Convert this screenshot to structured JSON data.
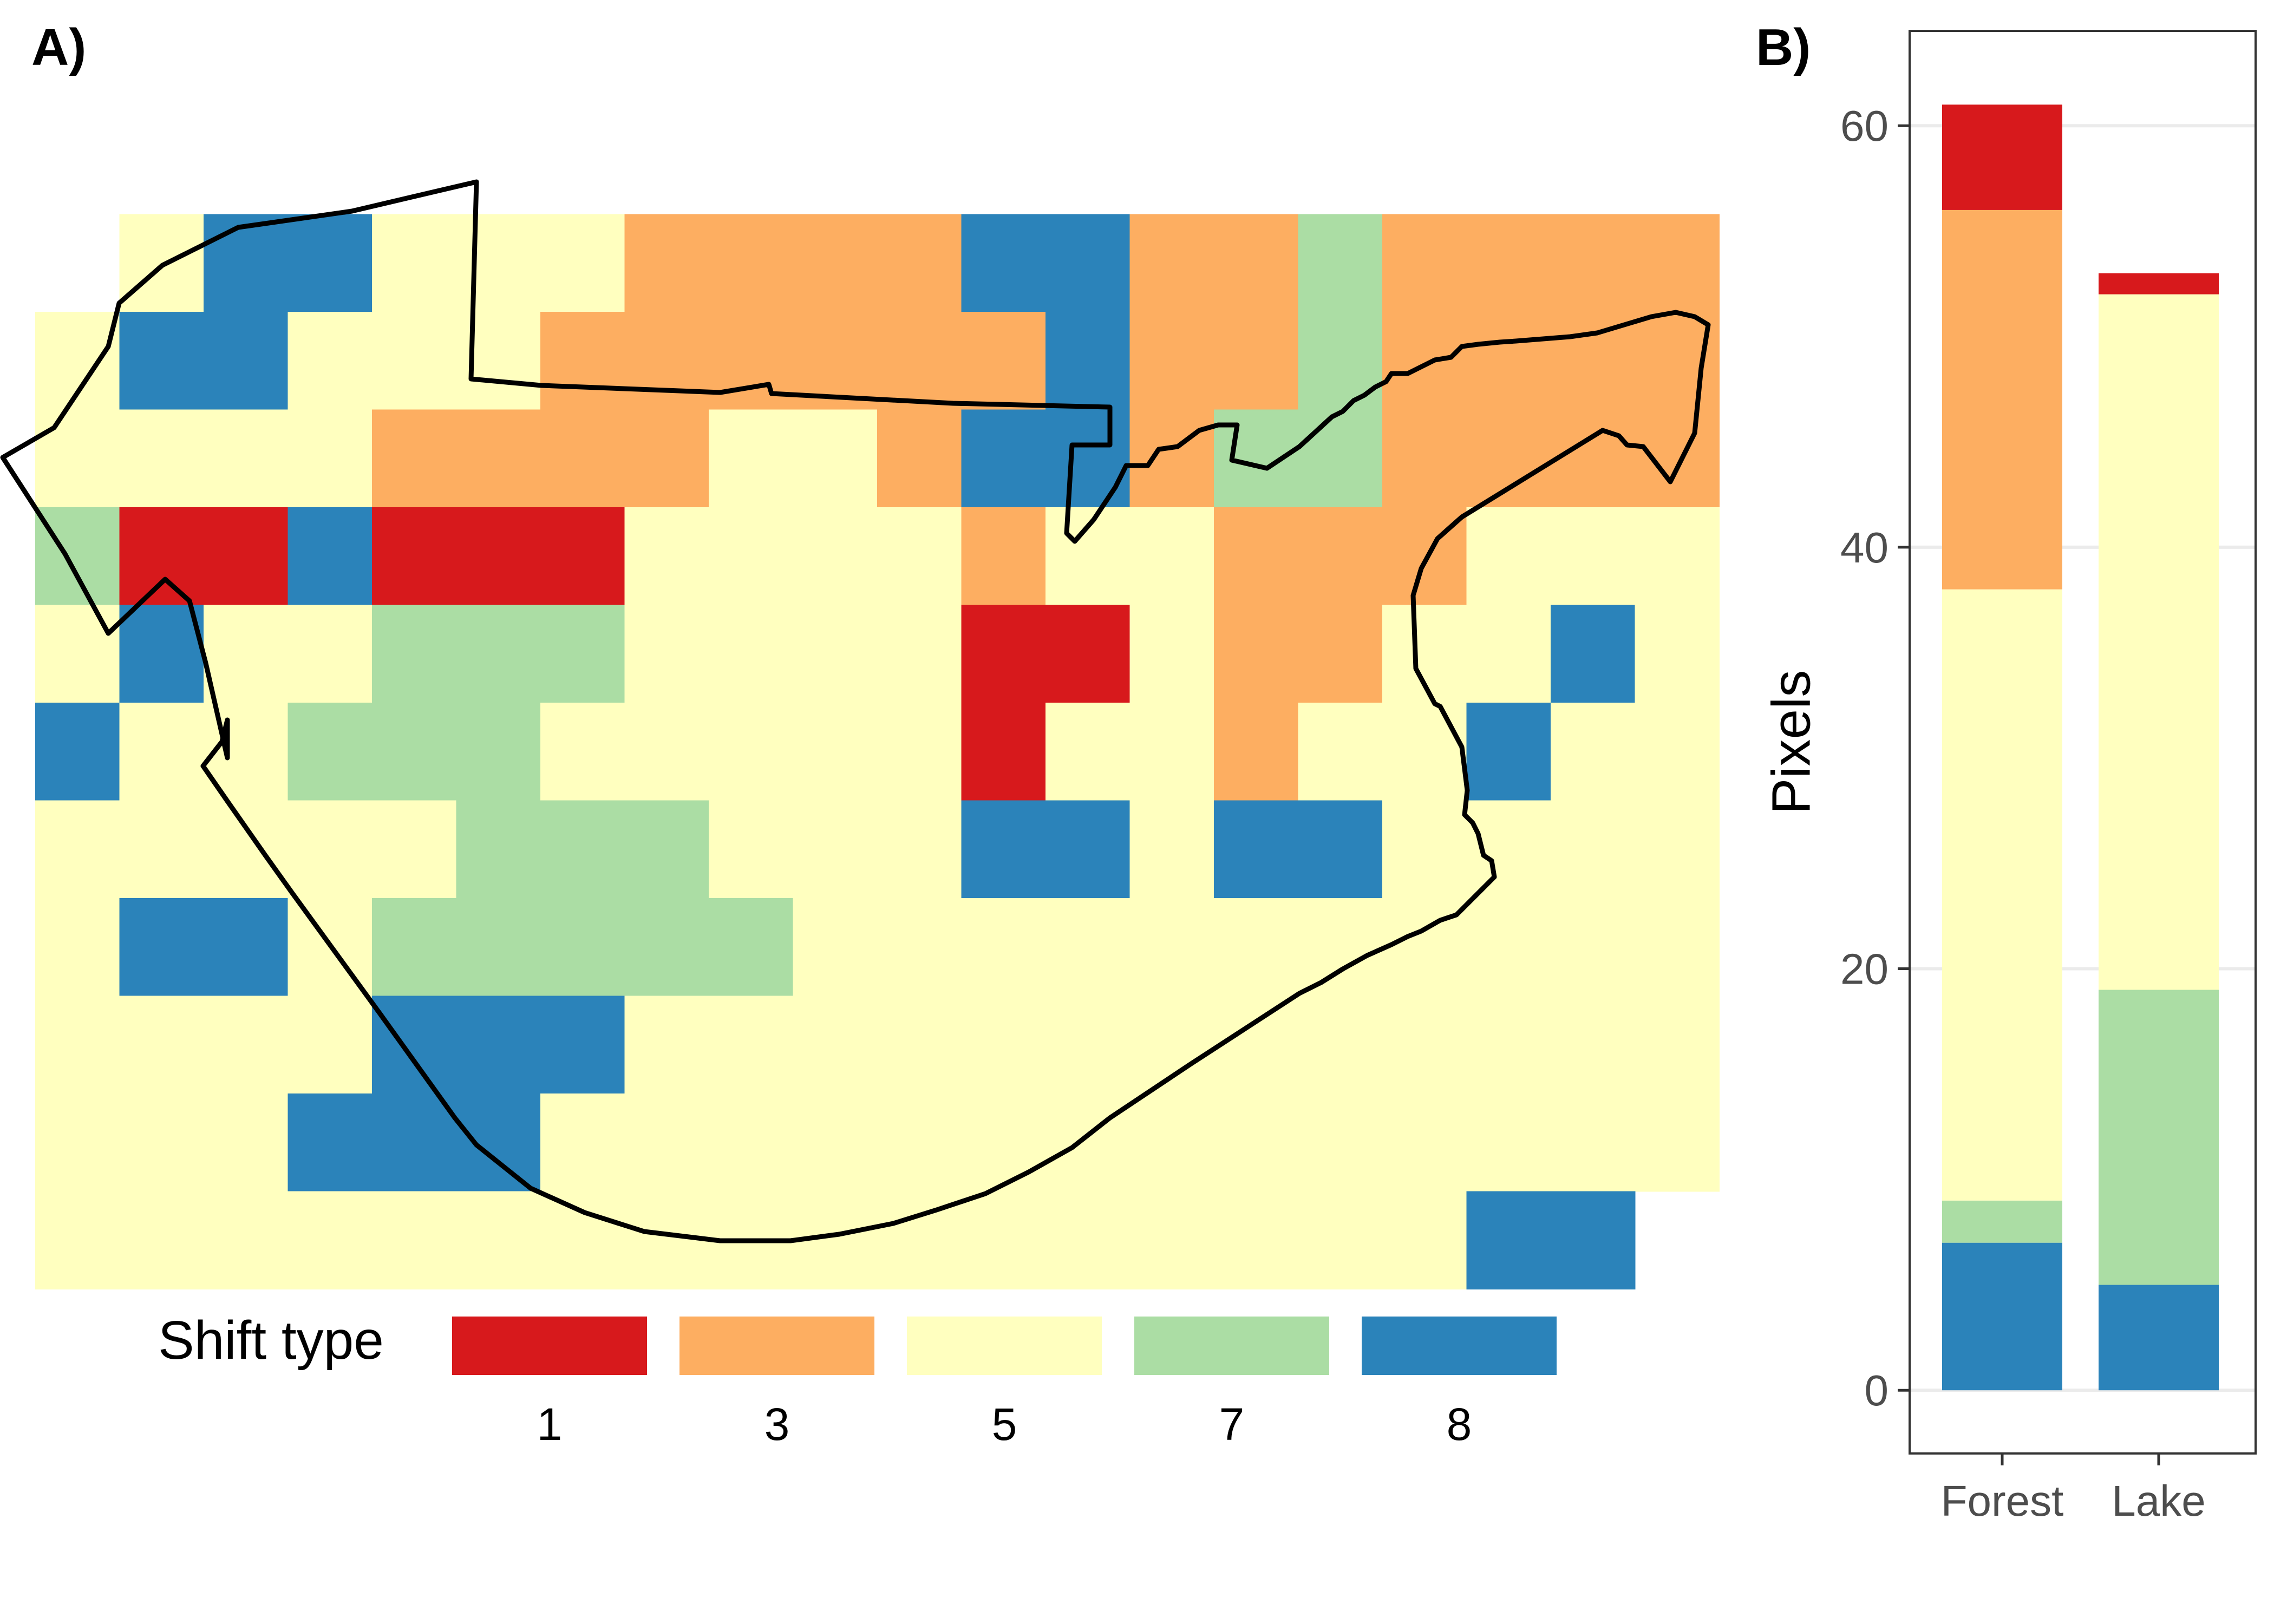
{
  "chart_data": [
    {
      "panel_label": "A)",
      "type": "heatmap",
      "legend": {
        "title": "Shift type",
        "items": [
          {
            "label": "1",
            "color": "#d7191c"
          },
          {
            "label": "3",
            "color": "#fdae61"
          },
          {
            "label": "5",
            "color": "#ffffbf"
          },
          {
            "label": "7",
            "color": "#abdda4"
          },
          {
            "label": "8",
            "color": "#2b83ba"
          }
        ]
      },
      "grid": [
        [
          0,
          0,
          0,
          0,
          0,
          0,
          0,
          0,
          0,
          0,
          0,
          0,
          0,
          0,
          0,
          0,
          0,
          0,
          0,
          0
        ],
        [
          0,
          5,
          8,
          8,
          5,
          5,
          5,
          3,
          3,
          3,
          3,
          8,
          8,
          3,
          3,
          7,
          3,
          3,
          3,
          3
        ],
        [
          5,
          8,
          8,
          5,
          5,
          5,
          3,
          3,
          3,
          3,
          3,
          3,
          8,
          3,
          3,
          7,
          3,
          3,
          3,
          3
        ],
        [
          5,
          5,
          5,
          5,
          3,
          3,
          3,
          3,
          5,
          5,
          3,
          8,
          8,
          3,
          7,
          7,
          3,
          3,
          3,
          3
        ],
        [
          7,
          1,
          1,
          8,
          1,
          1,
          1,
          5,
          5,
          5,
          5,
          3,
          5,
          5,
          3,
          3,
          3,
          5,
          5,
          5
        ],
        [
          5,
          8,
          5,
          5,
          7,
          7,
          7,
          5,
          5,
          5,
          5,
          1,
          1,
          5,
          3,
          3,
          5,
          5,
          8,
          5
        ],
        [
          8,
          5,
          5,
          7,
          7,
          7,
          5,
          5,
          5,
          5,
          5,
          1,
          5,
          5,
          3,
          5,
          5,
          8,
          5,
          5
        ],
        [
          5,
          5,
          5,
          5,
          5,
          7,
          7,
          7,
          5,
          5,
          5,
          8,
          8,
          5,
          8,
          8,
          5,
          5,
          5,
          5
        ],
        [
          5,
          8,
          8,
          5,
          7,
          7,
          7,
          7,
          7,
          5,
          5,
          5,
          5,
          5,
          5,
          5,
          5,
          5,
          5,
          5
        ],
        [
          5,
          5,
          5,
          5,
          8,
          8,
          8,
          5,
          5,
          5,
          5,
          5,
          5,
          5,
          5,
          5,
          5,
          5,
          5,
          5
        ],
        [
          5,
          5,
          5,
          8,
          8,
          8,
          5,
          5,
          5,
          5,
          5,
          5,
          5,
          5,
          5,
          5,
          5,
          5,
          5,
          5
        ],
        [
          5,
          5,
          5,
          5,
          5,
          5,
          5,
          5,
          5,
          5,
          5,
          5,
          5,
          5,
          5,
          5,
          5,
          8,
          8,
          0
        ]
      ]
    },
    {
      "panel_label": "B)",
      "type": "bar",
      "stacked": true,
      "categories": [
        "Forest",
        "Lake"
      ],
      "series": [
        {
          "name": "8",
          "color": "#2b83ba",
          "values": [
            7,
            5
          ]
        },
        {
          "name": "7",
          "color": "#abdda4",
          "values": [
            2,
            14
          ]
        },
        {
          "name": "5",
          "color": "#ffffbf",
          "values": [
            29,
            33
          ]
        },
        {
          "name": "3",
          "color": "#fdae61",
          "values": [
            18,
            0
          ]
        },
        {
          "name": "1",
          "color": "#d7191c",
          "values": [
            5,
            1
          ]
        }
      ],
      "ylabel": "Pixels",
      "yticks": [
        "0",
        "20",
        "40",
        "60"
      ],
      "ylim": [
        -3,
        64.5
      ],
      "grid": true
    }
  ]
}
